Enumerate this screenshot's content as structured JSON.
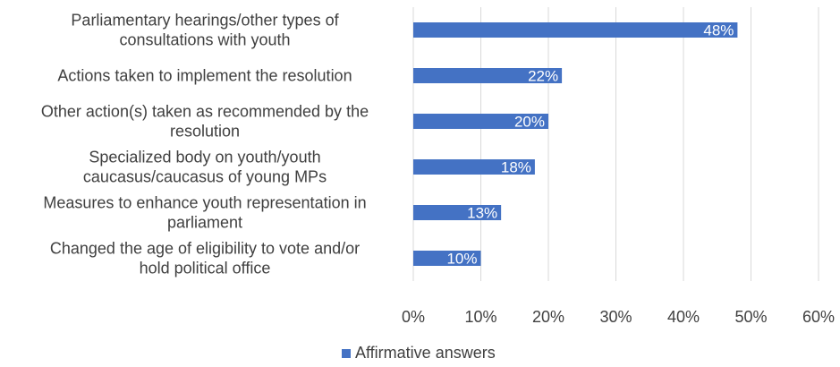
{
  "chart_data": {
    "type": "bar",
    "orientation": "horizontal",
    "categories": [
      [
        "Parliamentary hearings/other types of",
        "consultations with youth"
      ],
      [
        "Actions taken to implement the resolution"
      ],
      [
        "Other action(s) taken as recommended by the",
        "resolution"
      ],
      [
        "Specialized body on youth/youth",
        "caucasus/caucasus of young MPs"
      ],
      [
        "Measures to enhance youth representation in",
        "parliament"
      ],
      [
        "Changed the age of eligibility to vote and/or",
        "hold political office"
      ]
    ],
    "series": [
      {
        "name": "Affirmative answers",
        "values": [
          48,
          22,
          20,
          18,
          13,
          10
        ],
        "color": "#4472C4"
      }
    ],
    "data_labels": [
      "48%",
      "22%",
      "20%",
      "18%",
      "13%",
      "10%"
    ],
    "xlim": [
      0,
      60
    ],
    "xticks": [
      "0%",
      "10%",
      "20%",
      "30%",
      "40%",
      "50%",
      "60%"
    ],
    "grid": true,
    "gridline_color": "#d9d9d9",
    "legend_position": "bottom"
  }
}
